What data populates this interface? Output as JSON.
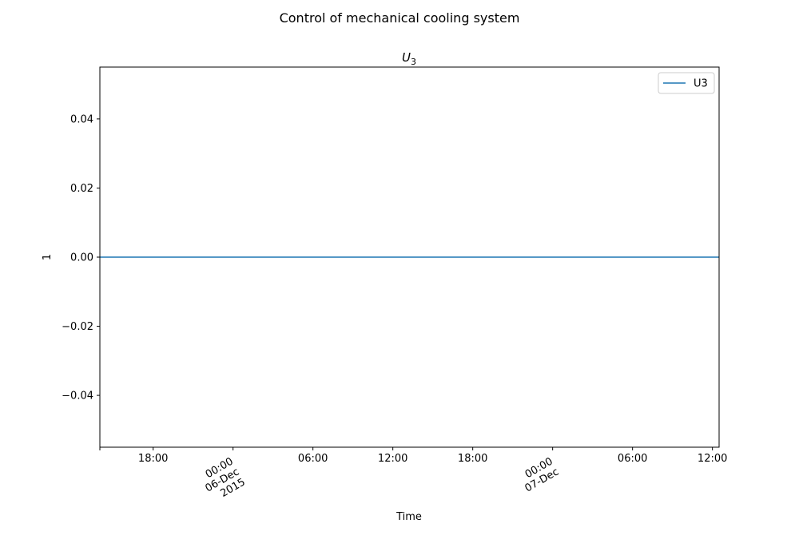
{
  "chart_data": {
    "type": "line",
    "title": "Control of mechanical cooling system",
    "subtitle": {
      "base": "U",
      "sub": "3"
    },
    "xlabel": "Time",
    "ylabel": "1",
    "xlim": [
      "2015-12-05T14:00",
      "2015-12-07T12:30"
    ],
    "ylim": [
      -0.055,
      0.055
    ],
    "yticks": [
      {
        "value": 0.04,
        "label": "0.04"
      },
      {
        "value": 0.02,
        "label": "0.02"
      },
      {
        "value": 0.0,
        "label": "0.00"
      },
      {
        "value": -0.02,
        "label": "−0.02"
      },
      {
        "value": -0.04,
        "label": "−0.04"
      }
    ],
    "xticks": [
      {
        "time": "2015-12-05T14:00",
        "label": []
      },
      {
        "time": "2015-12-05T18:00",
        "label": [
          "18:00"
        ]
      },
      {
        "time": "2015-12-06T00:00",
        "label": [
          "00:00",
          "06-Dec",
          "2015"
        ]
      },
      {
        "time": "2015-12-06T06:00",
        "label": [
          "06:00"
        ]
      },
      {
        "time": "2015-12-06T12:00",
        "label": [
          "12:00"
        ]
      },
      {
        "time": "2015-12-06T18:00",
        "label": [
          "18:00"
        ]
      },
      {
        "time": "2015-12-07T00:00",
        "label": [
          "00:00",
          "07-Dec"
        ]
      },
      {
        "time": "2015-12-07T06:00",
        "label": [
          "06:00"
        ]
      },
      {
        "time": "2015-12-07T12:00",
        "label": [
          "12:00"
        ]
      }
    ],
    "grid": false,
    "legend_position": "top-right",
    "series": [
      {
        "name": "U3",
        "color": "#1f77b4",
        "x": [
          "2015-12-05T14:00",
          "2015-12-07T12:30"
        ],
        "y": [
          0,
          0
        ]
      }
    ]
  }
}
